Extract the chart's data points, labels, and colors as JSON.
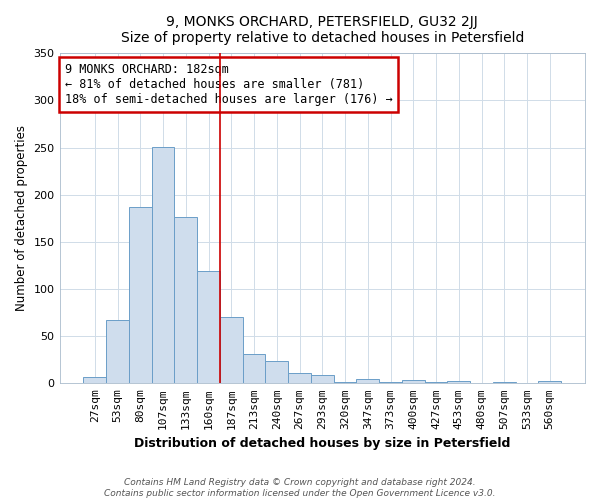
{
  "title": "9, MONKS ORCHARD, PETERSFIELD, GU32 2JJ",
  "subtitle": "Size of property relative to detached houses in Petersfield",
  "xlabel": "Distribution of detached houses by size in Petersfield",
  "ylabel": "Number of detached properties",
  "bar_labels": [
    "27sqm",
    "53sqm",
    "80sqm",
    "107sqm",
    "133sqm",
    "160sqm",
    "187sqm",
    "213sqm",
    "240sqm",
    "267sqm",
    "293sqm",
    "320sqm",
    "347sqm",
    "373sqm",
    "400sqm",
    "427sqm",
    "453sqm",
    "480sqm",
    "507sqm",
    "533sqm",
    "560sqm"
  ],
  "bar_values": [
    7,
    67,
    187,
    251,
    176,
    119,
    70,
    31,
    24,
    11,
    9,
    1,
    5,
    1,
    4,
    1,
    2,
    0,
    1,
    0,
    2
  ],
  "bar_color": "#cfdded",
  "bar_edge_color": "#6b9ec8",
  "vline_x": 5.5,
  "vline_color": "#cc0000",
  "ylim": [
    0,
    350
  ],
  "yticks": [
    0,
    50,
    100,
    150,
    200,
    250,
    300,
    350
  ],
  "annotation_title": "9 MONKS ORCHARD: 182sqm",
  "annotation_line1": "← 81% of detached houses are smaller (781)",
  "annotation_line2": "18% of semi-detached houses are larger (176) →",
  "annotation_box_color": "#ffffff",
  "annotation_box_edge_color": "#cc0000",
  "footer1": "Contains HM Land Registry data © Crown copyright and database right 2024.",
  "footer2": "Contains public sector information licensed under the Open Government Licence v3.0.",
  "background_color": "#ffffff",
  "plot_background": "#ffffff",
  "grid_color": "#d0dce8"
}
